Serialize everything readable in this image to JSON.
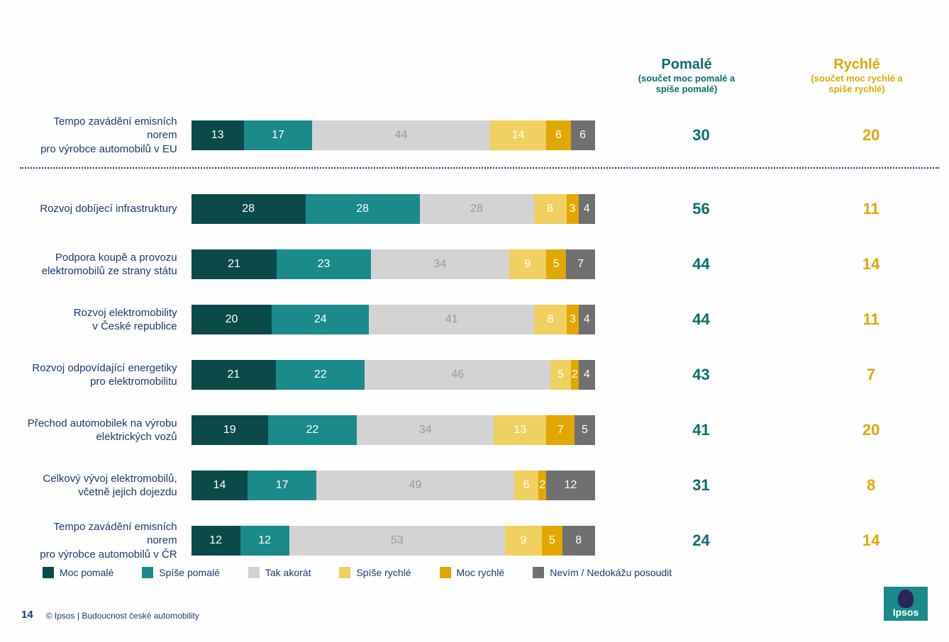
{
  "headers": {
    "pomale": {
      "title": "Pomalé",
      "sub": "(součet moc pomalé a spíše pomalé)"
    },
    "rychle": {
      "title": "Rychlé",
      "sub": "(součet moc rychlé a spíše rychlé)"
    }
  },
  "colors": {
    "moc_pomale": "#0c4a4a",
    "spise_pomale": "#1a8a8a",
    "akorat": "#d3d3d3",
    "spise_rychle": "#f0d060",
    "moc_rychle": "#e0a800",
    "nevim": "#707070",
    "text_light": "#ffffff",
    "text_gray": "#999999",
    "pomale_sum": "#0a6e6e",
    "rychle_sum": "#e0a800",
    "label": "#1a3a6e"
  },
  "rows": [
    {
      "label": "Tempo zavádění emisních norem\npro výrobce automobilů v EU",
      "segments": [
        13,
        17,
        44,
        14,
        6,
        6
      ],
      "pomale": 30,
      "rychle": 20,
      "divider_after": true
    },
    {
      "label": "Rozvoj dobíjecí infrastruktury",
      "segments": [
        28,
        28,
        28,
        8,
        3,
        4
      ],
      "pomale": 56,
      "rychle": 11
    },
    {
      "label": "Podpora koupě a provozu\nelektromobilů ze strany státu",
      "segments": [
        21,
        23,
        34,
        9,
        5,
        7
      ],
      "pomale": 44,
      "rychle": 14
    },
    {
      "label": "Rozvoj elektromobility\nv České republice",
      "segments": [
        20,
        24,
        41,
        8,
        3,
        4
      ],
      "pomale": 44,
      "rychle": 11
    },
    {
      "label": "Rozvoj odpovídající energetiky\npro elektromobilitu",
      "segments": [
        21,
        22,
        46,
        5,
        2,
        4
      ],
      "pomale": 43,
      "rychle": 7
    },
    {
      "label": "Přechod automobilek na výrobu\nelektrických vozů",
      "segments": [
        19,
        22,
        34,
        13,
        7,
        5
      ],
      "pomale": 41,
      "rychle": 20
    },
    {
      "label": "Celkový vývoj elektromobilů,\nvčetně jejich dojezdu",
      "segments": [
        14,
        17,
        49,
        6,
        2,
        12
      ],
      "pomale": 31,
      "rychle": 8
    },
    {
      "label": "Tempo zavádění emisních norem\npro výrobce automobilů v ČR",
      "segments": [
        12,
        12,
        53,
        9,
        5,
        8
      ],
      "pomale": 24,
      "rychle": 14
    }
  ],
  "legend": [
    {
      "label": "Moc pomalé",
      "color": "moc_pomale"
    },
    {
      "label": "Spíše pomalé",
      "color": "spise_pomale"
    },
    {
      "label": "Tak akorát",
      "color": "akorat"
    },
    {
      "label": "Spíše rychlé",
      "color": "spise_rychle"
    },
    {
      "label": "Moc rychlé",
      "color": "moc_rychle"
    },
    {
      "label": "Nevím / Nedokážu posoudit",
      "color": "nevim"
    }
  ],
  "footer": {
    "page": "14",
    "copyright": "© Ipsos | Budoucnost české automobility"
  },
  "segment_colors": [
    "moc_pomale",
    "spise_pomale",
    "akorat",
    "spise_rychle",
    "moc_rychle",
    "nevim"
  ],
  "segment_text_colors": [
    "#ffffff",
    "#ffffff",
    "#999999",
    "#ffffff",
    "#ffffff",
    "#ffffff"
  ]
}
